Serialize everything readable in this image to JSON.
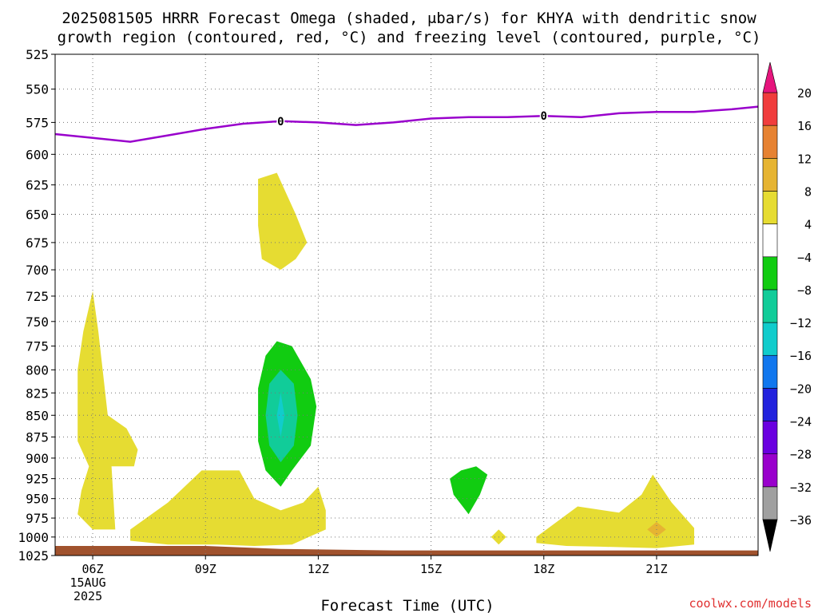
{
  "title_line1": "2025081505 HRRR Forecast Omega (shaded, μbar/s) for KHYA with dendritic snow",
  "title_line2": "growth region (contoured, red, °C) and freezing level (contoured, purple, °C)",
  "credit": "coolwx.com/models",
  "colors": {
    "freezing_level": "#9900cc",
    "ground": "#a0522d",
    "grid": "#777777"
  },
  "chart_data": {
    "type": "contour",
    "title": "2025081505 HRRR Forecast Omega (shaded, μbar/s) for KHYA with dendritic snow growth region (contoured, red, °C) and freezing level (contoured, purple, °C)",
    "xlabel": "Forecast Time (UTC)",
    "ylabel": "",
    "x_domain_hours": [
      5,
      23.7
    ],
    "y_domain_hPa": [
      525,
      1025
    ],
    "y_scale": "log",
    "grid": true,
    "y_ticks": [
      525,
      550,
      575,
      600,
      625,
      650,
      675,
      700,
      725,
      750,
      775,
      800,
      825,
      850,
      875,
      900,
      925,
      950,
      975,
      1000,
      1025
    ],
    "x_ticks": [
      {
        "hour": 6,
        "label": "06Z",
        "sub1": "15AUG",
        "sub2": "2025"
      },
      {
        "hour": 9,
        "label": "09Z",
        "sub1": "",
        "sub2": ""
      },
      {
        "hour": 12,
        "label": "12Z",
        "sub1": "",
        "sub2": ""
      },
      {
        "hour": 15,
        "label": "15Z",
        "sub1": "",
        "sub2": ""
      },
      {
        "hour": 18,
        "label": "18Z",
        "sub1": "",
        "sub2": ""
      },
      {
        "hour": 21,
        "label": "21Z",
        "sub1": "",
        "sub2": ""
      }
    ],
    "colorbar": {
      "levels": [
        "-36",
        "-32",
        "-28",
        "-24",
        "-20",
        "-16",
        "-12",
        "-8",
        "-4",
        "4",
        "8",
        "12",
        "16",
        "20"
      ],
      "colors": [
        "#a0a0a0",
        "#9900cc",
        "#6a00e0",
        "#2222dd",
        "#1177ee",
        "#11cccc",
        "#11cc99",
        "#11cc11",
        "#ffffff",
        "#e6dc32",
        "#e6b432",
        "#e68232",
        "#f03c3c"
      ],
      "top_color": "#e6157d",
      "bottom_color": "#000000"
    },
    "freezing_level": {
      "label": "0",
      "hours": [
        5,
        6,
        7,
        8,
        9,
        10,
        11,
        12,
        13,
        14,
        15,
        16,
        17,
        18,
        19,
        20,
        21,
        22,
        23,
        23.7
      ],
      "pressure_hPa": [
        584,
        587,
        590,
        585,
        580,
        576,
        574,
        575,
        577,
        575,
        572,
        571,
        571,
        570,
        571,
        568,
        567,
        567,
        565,
        563
      ],
      "label_hours": [
        11,
        18
      ]
    },
    "omega_regions": [
      {
        "name": "positive-4-8",
        "level": "4 to 8",
        "color": "#e6dc32",
        "points": [
          [
            10.4,
            620
          ],
          [
            10.9,
            615
          ],
          [
            11.4,
            650
          ],
          [
            11.7,
            675
          ],
          [
            11.4,
            690
          ],
          [
            11.0,
            700
          ],
          [
            10.5,
            690
          ],
          [
            10.4,
            660
          ]
        ]
      },
      {
        "name": "positive-4-8",
        "level": "4 to 8",
        "color": "#e6dc32",
        "points": [
          [
            6.0,
            720
          ],
          [
            6.15,
            760
          ],
          [
            6.4,
            850
          ],
          [
            6.9,
            865
          ],
          [
            7.2,
            890
          ],
          [
            7.1,
            910
          ],
          [
            6.5,
            910
          ],
          [
            6.6,
            990
          ],
          [
            6.0,
            990
          ],
          [
            5.6,
            970
          ],
          [
            5.7,
            940
          ],
          [
            5.9,
            910
          ],
          [
            5.6,
            880
          ],
          [
            5.6,
            800
          ],
          [
            5.75,
            760
          ]
        ]
      },
      {
        "name": "positive-4-8",
        "level": "4 to 8",
        "color": "#e6dc32",
        "points": [
          [
            7.0,
            990
          ],
          [
            8.0,
            955
          ],
          [
            8.9,
            915
          ],
          [
            9.9,
            915
          ],
          [
            10.3,
            950
          ],
          [
            11.0,
            965
          ],
          [
            11.6,
            955
          ],
          [
            12.0,
            935
          ],
          [
            12.2,
            965
          ],
          [
            12.2,
            990
          ],
          [
            11.3,
            1010
          ],
          [
            10.3,
            1012
          ],
          [
            9.3,
            1010
          ],
          [
            8.0,
            1010
          ],
          [
            7.0,
            1005
          ]
        ]
      },
      {
        "name": "positive-4-8",
        "level": "4 to 8",
        "color": "#e6dc32",
        "points": [
          [
            17.8,
            1000
          ],
          [
            18.9,
            960
          ],
          [
            20.0,
            968
          ],
          [
            20.6,
            945
          ],
          [
            20.9,
            920
          ],
          [
            21.4,
            955
          ],
          [
            22.0,
            988
          ],
          [
            22.0,
            1010
          ],
          [
            21.0,
            1015
          ],
          [
            19.5,
            1013
          ],
          [
            18.6,
            1012
          ],
          [
            17.8,
            1008
          ]
        ]
      },
      {
        "name": "positive-4-8",
        "level": "4 to 8",
        "color": "#e6dc32",
        "points": [
          [
            16.8,
            990
          ],
          [
            17.0,
            1000
          ],
          [
            16.8,
            1010
          ],
          [
            16.6,
            1000
          ]
        ]
      },
      {
        "name": "positive-8-12",
        "level": "8 to 12",
        "color": "#e6b432",
        "points": [
          [
            20.75,
            990
          ],
          [
            21.0,
            980
          ],
          [
            21.25,
            990
          ],
          [
            21.0,
            1000
          ]
        ]
      },
      {
        "name": "negative-4-8",
        "level": "-8 to -4",
        "color": "#11cc11",
        "points": [
          [
            10.9,
            770
          ],
          [
            11.3,
            775
          ],
          [
            11.8,
            810
          ],
          [
            11.95,
            840
          ],
          [
            11.8,
            885
          ],
          [
            11.3,
            915
          ],
          [
            11.0,
            935
          ],
          [
            10.6,
            915
          ],
          [
            10.4,
            880
          ],
          [
            10.4,
            820
          ],
          [
            10.6,
            785
          ]
        ]
      },
      {
        "name": "negative-4-8",
        "level": "-8 to -4",
        "color": "#11cc11",
        "points": [
          [
            15.8,
            915
          ],
          [
            16.2,
            910
          ],
          [
            16.5,
            920
          ],
          [
            16.3,
            945
          ],
          [
            16.0,
            970
          ],
          [
            15.6,
            945
          ],
          [
            15.5,
            925
          ]
        ]
      },
      {
        "name": "negative-8-12",
        "level": "-12 to -8",
        "color": "#11cc99",
        "points": [
          [
            11.0,
            800
          ],
          [
            11.35,
            815
          ],
          [
            11.45,
            850
          ],
          [
            11.35,
            885
          ],
          [
            11.0,
            905
          ],
          [
            10.7,
            885
          ],
          [
            10.6,
            850
          ],
          [
            10.7,
            815
          ]
        ]
      },
      {
        "name": "negative-12-16",
        "level": "-16 to -12",
        "color": "#11cccc",
        "points": [
          [
            11.0,
            825
          ],
          [
            11.1,
            850
          ],
          [
            11.0,
            875
          ],
          [
            10.9,
            850
          ]
        ]
      }
    ],
    "surface": {
      "name": "ground",
      "points": [
        [
          5,
          1012
        ],
        [
          9,
          1012
        ],
        [
          11,
          1016
        ],
        [
          14,
          1018
        ],
        [
          18,
          1018
        ],
        [
          23.7,
          1018
        ],
        [
          23.7,
          1025
        ],
        [
          5,
          1025
        ]
      ]
    }
  }
}
